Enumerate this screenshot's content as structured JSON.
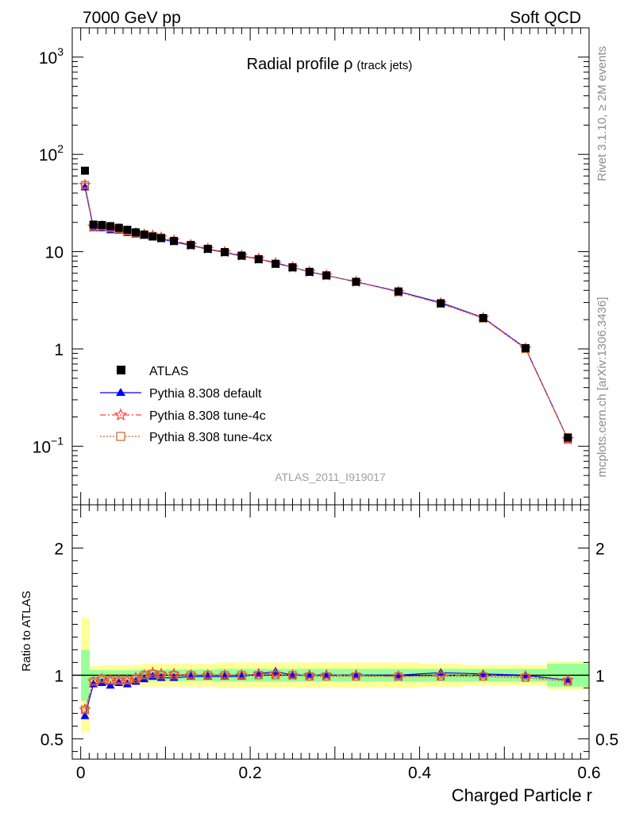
{
  "header": {
    "left": "7000 GeV pp",
    "right": "Soft QCD"
  },
  "side_labels": {
    "rivet": "Rivet 3.1.10, ≥ 2M events",
    "mcplots": "mcplots.cern.ch [arXiv:1306.3436]"
  },
  "analysis_tag": "ATLAS_2011_I919017",
  "colors": {
    "atlas": "#000000",
    "default": "#0000ff",
    "tune4c": "#ff4040",
    "tune4cx": "#c86432",
    "band_inner": "#99ff99",
    "band_outer": "#ffff99"
  },
  "chart_data": [
    {
      "type": "line",
      "title_main": "Radial profile ",
      "title_symbol": "ρ",
      "title_sub": "(track jets)",
      "xlabel": "Charged Particle r",
      "ylabel": "",
      "yscale": "log",
      "xlim": [
        -0.01,
        0.6
      ],
      "ylim": [
        0.025,
        2000
      ],
      "ytick_labels": [
        {
          "v": 1000,
          "base": "10",
          "exp": "3"
        },
        {
          "v": 100,
          "base": "10",
          "exp": "2"
        },
        {
          "v": 10,
          "base": "10",
          "exp": ""
        },
        {
          "v": 1,
          "base": "1",
          "exp": ""
        },
        {
          "v": 0.1,
          "base": "10",
          "exp": "−1"
        }
      ],
      "legend_position": "lower-left",
      "x": [
        0.005,
        0.015,
        0.025,
        0.035,
        0.045,
        0.055,
        0.065,
        0.075,
        0.085,
        0.095,
        0.11,
        0.13,
        0.15,
        0.17,
        0.19,
        0.21,
        0.23,
        0.25,
        0.27,
        0.29,
        0.325,
        0.375,
        0.425,
        0.475,
        0.525,
        0.575
      ],
      "series": [
        {
          "name": "ATLAS",
          "marker": "square",
          "values": [
            68,
            19,
            18.8,
            18.3,
            17.6,
            16.8,
            15.8,
            15.0,
            14.3,
            13.8,
            12.9,
            11.7,
            10.7,
            9.9,
            9.1,
            8.35,
            7.5,
            6.9,
            6.2,
            5.7,
            4.9,
            3.9,
            2.95,
            2.08,
            1.02,
            0.123
          ]
        },
        {
          "name": "Pythia 8.308 default",
          "marker": "triangle",
          "values": [
            46,
            17.5,
            17.5,
            16.7,
            16.5,
            15.6,
            15.0,
            14.6,
            14.2,
            13.5,
            12.6,
            11.6,
            10.6,
            9.8,
            9.0,
            8.4,
            7.7,
            6.9,
            6.2,
            5.7,
            4.9,
            3.9,
            3.0,
            2.1,
            1.02,
            0.118
          ]
        },
        {
          "name": "Pythia 8.308 tune-4c",
          "marker": "star",
          "values": [
            48.5,
            18.0,
            18.3,
            17.6,
            17.0,
            16.2,
            15.5,
            15.0,
            14.6,
            14.0,
            13.0,
            11.7,
            10.7,
            9.9,
            9.1,
            8.45,
            7.6,
            6.9,
            6.2,
            5.7,
            4.9,
            3.85,
            2.95,
            2.08,
            1.01,
            0.118
          ]
        },
        {
          "name": "Pythia 8.308 tune-4cx",
          "marker": "open-square",
          "values": [
            48.5,
            18.0,
            18.3,
            17.6,
            17.0,
            16.2,
            15.4,
            15.0,
            14.5,
            13.9,
            12.9,
            11.7,
            10.7,
            9.9,
            9.1,
            8.4,
            7.5,
            6.9,
            6.2,
            5.7,
            4.9,
            3.85,
            2.92,
            2.06,
            1.0,
            0.117
          ]
        }
      ]
    },
    {
      "type": "line",
      "ylabel": "Ratio to ATLAS",
      "xlabel": "Charged Particle r",
      "xlim": [
        -0.01,
        0.6
      ],
      "ylim": [
        0.34,
        2.34
      ],
      "ytick_labels": [
        {
          "v": 0.5,
          "label": "0.5"
        },
        {
          "v": 1,
          "label": "1"
        },
        {
          "v": 2,
          "label": "2"
        }
      ],
      "xtick_labels": [
        {
          "v": 0,
          "label": "0"
        },
        {
          "v": 0.2,
          "label": "0.2"
        },
        {
          "v": 0.4,
          "label": "0.4"
        },
        {
          "v": 0.6,
          "label": "0.6"
        }
      ],
      "x_edges": [
        0.0,
        0.01,
        0.02,
        0.03,
        0.04,
        0.05,
        0.06,
        0.07,
        0.08,
        0.09,
        0.1,
        0.12,
        0.14,
        0.16,
        0.18,
        0.2,
        0.22,
        0.24,
        0.26,
        0.28,
        0.3,
        0.35,
        0.4,
        0.45,
        0.5,
        0.55,
        0.6
      ],
      "band_inner_halfwidth": [
        0.2,
        0.04,
        0.04,
        0.04,
        0.04,
        0.04,
        0.04,
        0.045,
        0.045,
        0.045,
        0.045,
        0.045,
        0.045,
        0.05,
        0.05,
        0.05,
        0.05,
        0.05,
        0.05,
        0.05,
        0.05,
        0.05,
        0.05,
        0.05,
        0.05,
        0.09
      ],
      "band_outer_halfwidth": [
        0.45,
        0.07,
        0.08,
        0.08,
        0.08,
        0.08,
        0.08,
        0.09,
        0.09,
        0.09,
        0.09,
        0.09,
        0.09,
        0.1,
        0.1,
        0.1,
        0.1,
        0.1,
        0.1,
        0.1,
        0.1,
        0.1,
        0.09,
        0.08,
        0.08,
        0.11
      ],
      "series": [
        {
          "name": "Pythia 8.308 default",
          "marker": "triangle",
          "values": [
            0.68,
            0.93,
            0.94,
            0.92,
            0.94,
            0.93,
            0.95,
            0.97,
            0.99,
            0.98,
            0.98,
            0.99,
            0.99,
            0.99,
            0.99,
            1.01,
            1.03,
            1.0,
            1.0,
            1.0,
            1.0,
            1.0,
            1.02,
            1.01,
            1.0,
            0.96
          ]
        },
        {
          "name": "Pythia 8.308 tune-4c",
          "marker": "star",
          "values": [
            0.73,
            0.95,
            0.97,
            0.96,
            0.96,
            0.96,
            0.98,
            1.0,
            1.02,
            1.01,
            1.01,
            1.0,
            1.0,
            1.0,
            1.0,
            1.01,
            1.01,
            1.0,
            1.0,
            1.0,
            1.0,
            0.99,
            1.0,
            1.0,
            0.99,
            0.96
          ]
        },
        {
          "name": "Pythia 8.308 tune-4cx",
          "marker": "open-square",
          "values": [
            0.73,
            0.95,
            0.97,
            0.96,
            0.96,
            0.96,
            0.97,
            1.0,
            1.01,
            1.0,
            1.0,
            1.0,
            1.0,
            1.0,
            1.0,
            1.0,
            1.0,
            1.0,
            0.99,
            0.99,
            0.99,
            0.99,
            0.99,
            0.99,
            0.98,
            0.95
          ]
        }
      ]
    }
  ]
}
